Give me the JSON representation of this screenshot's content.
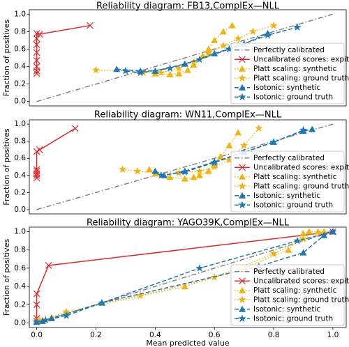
{
  "chart_data": [
    {
      "type": "line",
      "title": "Reliability diagram: FB13,ComplEx—NLL",
      "ylabel": "Fraction of positives",
      "xlim": [
        -0.025,
        1.045
      ],
      "ylim": [
        -0.05,
        1.05
      ],
      "yticks": [
        {
          "value": 0,
          "label": "0.0"
        },
        0.2,
        0.4,
        0.6,
        0.8,
        {
          "value": 1,
          "label": "1.0"
        }
      ],
      "grid": false,
      "legend": "lower right",
      "series": [
        {
          "name": "Perfectly calibrated",
          "color": "#808080",
          "linestyle": "-.",
          "marker": "none",
          "x": [
            0,
            1
          ],
          "values": [
            0,
            1
          ]
        },
        {
          "name": "Uncalibrated scores: expit",
          "color": "#e0282d",
          "linestyle": "-",
          "marker": "x",
          "x": [
            0,
            0,
            0,
            0,
            0,
            0,
            0,
            0,
            0.01,
            0.18
          ],
          "values": [
            0.32,
            0.35,
            0.4,
            0.47,
            0.56,
            0.65,
            0.72,
            0.78,
            0.77,
            0.87
          ]
        },
        {
          "name": "Platt scaling: synthetic",
          "color": "#f2b30a",
          "linestyle": ":",
          "marker": "^",
          "x": [
            0.4,
            0.45,
            0.48,
            0.51,
            0.53,
            0.56,
            0.58,
            0.6,
            0.63,
            0.66
          ],
          "values": [
            0.32,
            0.31,
            0.32,
            0.36,
            0.42,
            0.52,
            0.6,
            0.7,
            0.8,
            0.87
          ]
        },
        {
          "name": "Platt scaling: ground truth",
          "color": "#f2b30a",
          "linestyle": ":",
          "marker": "*",
          "x": [
            0.2,
            0.3,
            0.36,
            0.42,
            0.48,
            0.53,
            0.58,
            0.63,
            0.68,
            0.73,
            0.8
          ],
          "values": [
            0.36,
            0.35,
            0.33,
            0.33,
            0.38,
            0.45,
            0.55,
            0.64,
            0.72,
            0.8,
            0.87
          ]
        },
        {
          "name": "Isotonic: synthetic",
          "color": "#1f77b4",
          "linestyle": "--",
          "marker": "^",
          "x": [
            0.27,
            0.35,
            0.4,
            0.5,
            0.6,
            0.7,
            0.78
          ],
          "values": [
            0.37,
            0.35,
            0.35,
            0.43,
            0.55,
            0.66,
            0.78
          ]
        },
        {
          "name": "Isotonic: ground truth",
          "color": "#1f77b4",
          "linestyle": "--",
          "marker": "*",
          "x": [
            0.3,
            0.35,
            0.45,
            0.55,
            0.65,
            0.78,
            0.88
          ],
          "values": [
            0.35,
            0.33,
            0.38,
            0.48,
            0.6,
            0.76,
            0.85
          ]
        }
      ]
    },
    {
      "type": "line",
      "title": "Reliability diagram: WN11,ComplEx—NLL",
      "ylabel": "Fraction of positives",
      "xlim": [
        -0.025,
        1.045
      ],
      "ylim": [
        -0.05,
        1.05
      ],
      "yticks": [
        {
          "value": 0,
          "label": "0.0"
        },
        0.2,
        0.4,
        0.6,
        0.8,
        {
          "value": 1,
          "label": "1.0"
        }
      ],
      "grid": false,
      "legend": "lower right",
      "series": [
        {
          "name": "Perfectly calibrated",
          "color": "#808080",
          "linestyle": "-.",
          "marker": "none",
          "x": [
            0,
            1
          ],
          "values": [
            0,
            1
          ]
        },
        {
          "name": "Uncalibrated scores: expit",
          "color": "#e0282d",
          "linestyle": "-",
          "marker": "x",
          "x": [
            0,
            0,
            0,
            0,
            0,
            0,
            0.01,
            0.13
          ],
          "values": [
            0.37,
            0.4,
            0.42,
            0.45,
            0.47,
            0.68,
            0.7,
            0.95
          ]
        },
        {
          "name": "Platt scaling: synthetic",
          "color": "#f2b30a",
          "linestyle": ":",
          "marker": "^",
          "x": [
            0.38,
            0.4,
            0.45,
            0.5,
            0.53,
            0.55,
            0.58,
            0.6,
            0.62,
            0.65,
            0.68
          ],
          "values": [
            0.47,
            0.42,
            0.38,
            0.36,
            0.38,
            0.4,
            0.45,
            0.52,
            0.62,
            0.75,
            0.9
          ]
        },
        {
          "name": "Platt scaling: ground truth",
          "color": "#f2b30a",
          "linestyle": ":",
          "marker": "*",
          "x": [
            0.29,
            0.34,
            0.4,
            0.48,
            0.55,
            0.6,
            0.65,
            0.7,
            0.75
          ],
          "values": [
            0.47,
            0.45,
            0.43,
            0.43,
            0.45,
            0.5,
            0.58,
            0.75,
            0.95
          ]
        },
        {
          "name": "Isotonic: synthetic",
          "color": "#1f77b4",
          "linestyle": "--",
          "marker": "^",
          "x": [
            0.4,
            0.43,
            0.5,
            0.6,
            0.7,
            0.8,
            0.9,
            0.93
          ],
          "values": [
            0.45,
            0.4,
            0.45,
            0.56,
            0.67,
            0.79,
            0.92,
            0.94
          ]
        },
        {
          "name": "Isotonic: ground truth",
          "color": "#1f77b4",
          "linestyle": "--",
          "marker": "*",
          "x": [
            0.42,
            0.5,
            0.6,
            0.7,
            0.8,
            0.9
          ],
          "values": [
            0.4,
            0.44,
            0.55,
            0.67,
            0.79,
            0.93
          ]
        }
      ]
    },
    {
      "type": "line",
      "title": "Reliability diagram: YAGO39K,ComplEx—NLL",
      "ylabel": "Fraction of positives",
      "xlabel": "Mean predicted value",
      "xlim": [
        -0.025,
        1.045
      ],
      "ylim": [
        -0.05,
        1.05
      ],
      "xticks": [
        {
          "value": 0,
          "label": "0.0"
        },
        0.2,
        0.4,
        0.6,
        0.8,
        {
          "value": 1,
          "label": "1.0"
        }
      ],
      "yticks": [
        {
          "value": 0,
          "label": "0.0"
        },
        0.2,
        0.4,
        0.6,
        0.8,
        {
          "value": 1,
          "label": "1.0"
        }
      ],
      "grid": false,
      "legend": "lower right",
      "series": [
        {
          "name": "Perfectly calibrated",
          "color": "#808080",
          "linestyle": "-.",
          "marker": "none",
          "x": [
            0,
            1
          ],
          "values": [
            0,
            1
          ]
        },
        {
          "name": "Uncalibrated scores: expit",
          "color": "#e0282d",
          "linestyle": "-",
          "marker": "x",
          "x": [
            0,
            0,
            0,
            0,
            0.04,
            1
          ],
          "values": [
            0.02,
            0.05,
            0.2,
            0.32,
            0.63,
            1
          ]
        },
        {
          "name": "Platt scaling: synthetic",
          "color": "#f2b30a",
          "linestyle": ":",
          "marker": "^",
          "x": [
            0,
            0.01,
            0.05,
            0.1,
            0.5,
            0.7,
            0.85,
            0.9,
            0.92,
            0.95,
            0.97
          ],
          "values": [
            0.02,
            0.03,
            0.06,
            0.12,
            0.4,
            0.6,
            0.8,
            0.98,
            1,
            1,
            1
          ]
        },
        {
          "name": "Platt scaling: ground truth",
          "color": "#f2b30a",
          "linestyle": ":",
          "marker": "*",
          "x": [
            0,
            0.02,
            0.1,
            0.35,
            0.6,
            0.8,
            0.9,
            0.97,
            1
          ],
          "values": [
            0.01,
            0.03,
            0.12,
            0.3,
            0.5,
            0.76,
            0.92,
            0.98,
            1
          ]
        },
        {
          "name": "Isotonic: synthetic",
          "color": "#1f77b4",
          "linestyle": "--",
          "marker": "^",
          "x": [
            0,
            0.02,
            0.05,
            0.22,
            0.75,
            0.9,
            0.97,
            1
          ],
          "values": [
            0.01,
            0.02,
            0.05,
            0.22,
            0.62,
            0.77,
            0.96,
            1
          ]
        },
        {
          "name": "Isotonic: ground truth",
          "color": "#1f77b4",
          "linestyle": "--",
          "marker": "*",
          "x": [
            0,
            0.03,
            0.1,
            0.22,
            0.55,
            0.88,
            1
          ],
          "values": [
            0.01,
            0.03,
            0.08,
            0.22,
            0.6,
            0.9,
            1
          ]
        }
      ]
    }
  ]
}
